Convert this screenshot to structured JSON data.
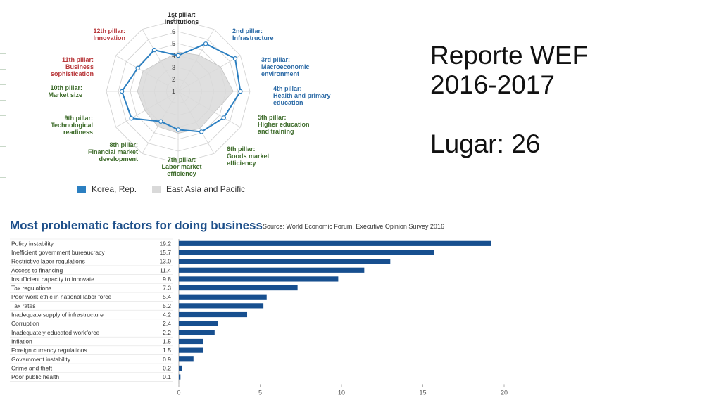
{
  "slide": {
    "title_line1": "Reporte WEF",
    "title_line2": "2016-2017",
    "rank_label": "Lugar: 26"
  },
  "colors": {
    "korea": "#2b7fc1",
    "region": "#d9d9d9",
    "bars": "#174f8f",
    "title": "#1d4f8a"
  },
  "chart_data": [
    {
      "type": "radar",
      "pillars": [
        {
          "lines": [
            "1st pillar:",
            "Institutions"
          ],
          "color": "dark"
        },
        {
          "lines": [
            "2nd pillar:",
            "Infrastructure"
          ],
          "color": "blue"
        },
        {
          "lines": [
            "3rd pillar:",
            "Macroeconomic",
            "environment"
          ],
          "color": "blue"
        },
        {
          "lines": [
            "4th pillar:",
            "Health and primary",
            "education"
          ],
          "color": "blue"
        },
        {
          "lines": [
            "5th pillar:",
            "Higher education",
            "and training"
          ],
          "color": "green"
        },
        {
          "lines": [
            "6th pillar:",
            "Goods market",
            "efficiency"
          ],
          "color": "green"
        },
        {
          "lines": [
            "7th pillar:",
            "Labor market",
            "efficiency"
          ],
          "color": "green"
        },
        {
          "lines": [
            "8th pillar:",
            "Financial market",
            "development"
          ],
          "color": "green"
        },
        {
          "lines": [
            "9th pillar:",
            "Technological",
            "readiness"
          ],
          "color": "green"
        },
        {
          "lines": [
            "10th pillar:",
            "Market size"
          ],
          "color": "green"
        },
        {
          "lines": [
            "11th pillar:",
            "Business",
            "sophistication"
          ],
          "color": "red"
        },
        {
          "lines": [
            "12th pillar:",
            "Innovation"
          ],
          "color": "red"
        }
      ],
      "rlim": [
        1,
        7
      ],
      "ticks": [
        "1",
        "2",
        "3",
        "4",
        "5",
        "6",
        "7"
      ],
      "series": [
        {
          "name": "Korea, Rep.",
          "values": [
            4.0,
            5.6,
            6.5,
            6.2,
            5.4,
            4.9,
            4.2,
            3.9,
            5.5,
            5.7,
            4.9,
            5.0
          ]
        },
        {
          "name": "East Asia and Pacific",
          "values": [
            4.3,
            4.5,
            5.1,
            5.6,
            4.5,
            4.6,
            4.5,
            4.4,
            4.2,
            4.4,
            4.4,
            3.9
          ]
        }
      ]
    },
    {
      "type": "bar",
      "orientation": "horizontal",
      "title": "Most problematic factors for doing business",
      "source": "Source: World Economic Forum, Executive Opinion Survey 2016",
      "categories": [
        "Policy instability",
        "Inefficient government bureaucracy",
        "Restrictive labor regulations",
        "Access to financing",
        "Insufficient capacity to innovate",
        "Tax regulations",
        "Poor work ethic in national labor force",
        "Tax rates",
        "Inadequate supply of infrastructure",
        "Corruption",
        "Inadequately educated workforce",
        "Inflation",
        "Foreign currency regulations",
        "Government instability",
        "Crime and theft",
        "Poor public health"
      ],
      "value_labels": [
        "19.2",
        "15.7",
        "13.0",
        "11.4",
        "9.8",
        "7.3",
        "5.4",
        "5.2",
        "4.2",
        "2.4",
        "2.2",
        "1.5",
        "1.5",
        "0.9",
        "0.2",
        "0.1"
      ],
      "values": [
        19.2,
        15.7,
        13.0,
        11.4,
        9.8,
        7.3,
        5.4,
        5.2,
        4.2,
        2.4,
        2.2,
        1.5,
        1.5,
        0.9,
        0.2,
        0.1
      ],
      "xlim": [
        0,
        20
      ],
      "xticks": [
        "0",
        "5",
        "10",
        "15",
        "20"
      ]
    }
  ]
}
